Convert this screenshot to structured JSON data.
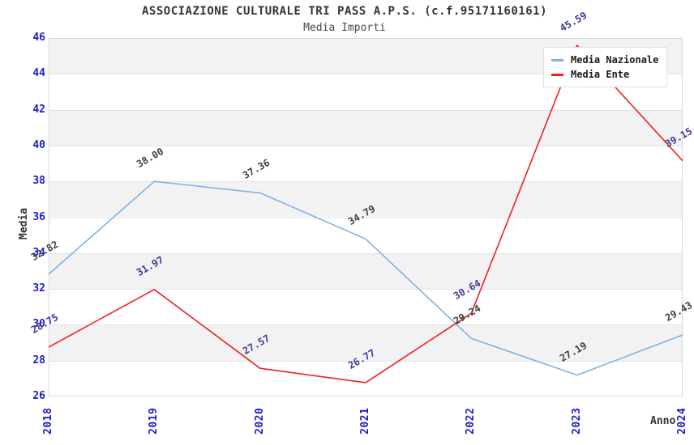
{
  "header": {
    "title": "ASSOCIAZIONE CULTURALE TRI PASS A.P.S. (c.f.95171160161)",
    "subtitle": "Media Importi"
  },
  "chart_data": {
    "type": "line",
    "x": [
      "2018",
      "2019",
      "2020",
      "2021",
      "2022",
      "2023",
      "2024"
    ],
    "series": [
      {
        "name": "Media Nazionale",
        "color": "#7fb2e5",
        "label_color": "#404040",
        "values": [
          32.82,
          38.0,
          37.36,
          34.79,
          29.24,
          27.19,
          29.43
        ]
      },
      {
        "name": "Media Ente",
        "color": "#ee2222",
        "label_color": "#3c3c99",
        "values": [
          28.75,
          31.97,
          27.57,
          26.77,
          30.64,
          45.59,
          39.15
        ]
      }
    ],
    "xlabel": "Anno",
    "ylabel": "Media",
    "ylim": [
      26,
      46
    ],
    "yticks": [
      26,
      28,
      30,
      32,
      34,
      36,
      38,
      40,
      42,
      44,
      46
    ],
    "value_label_decimals": 2,
    "legend_position": "top-right",
    "grid": true,
    "band_colors": [
      "#f2f2f2",
      "#ffffff"
    ],
    "axis_tick_color": "#1c1ccd",
    "gridline_color": "#e2e2e2",
    "plot_border_color": "#d8d8d8"
  }
}
